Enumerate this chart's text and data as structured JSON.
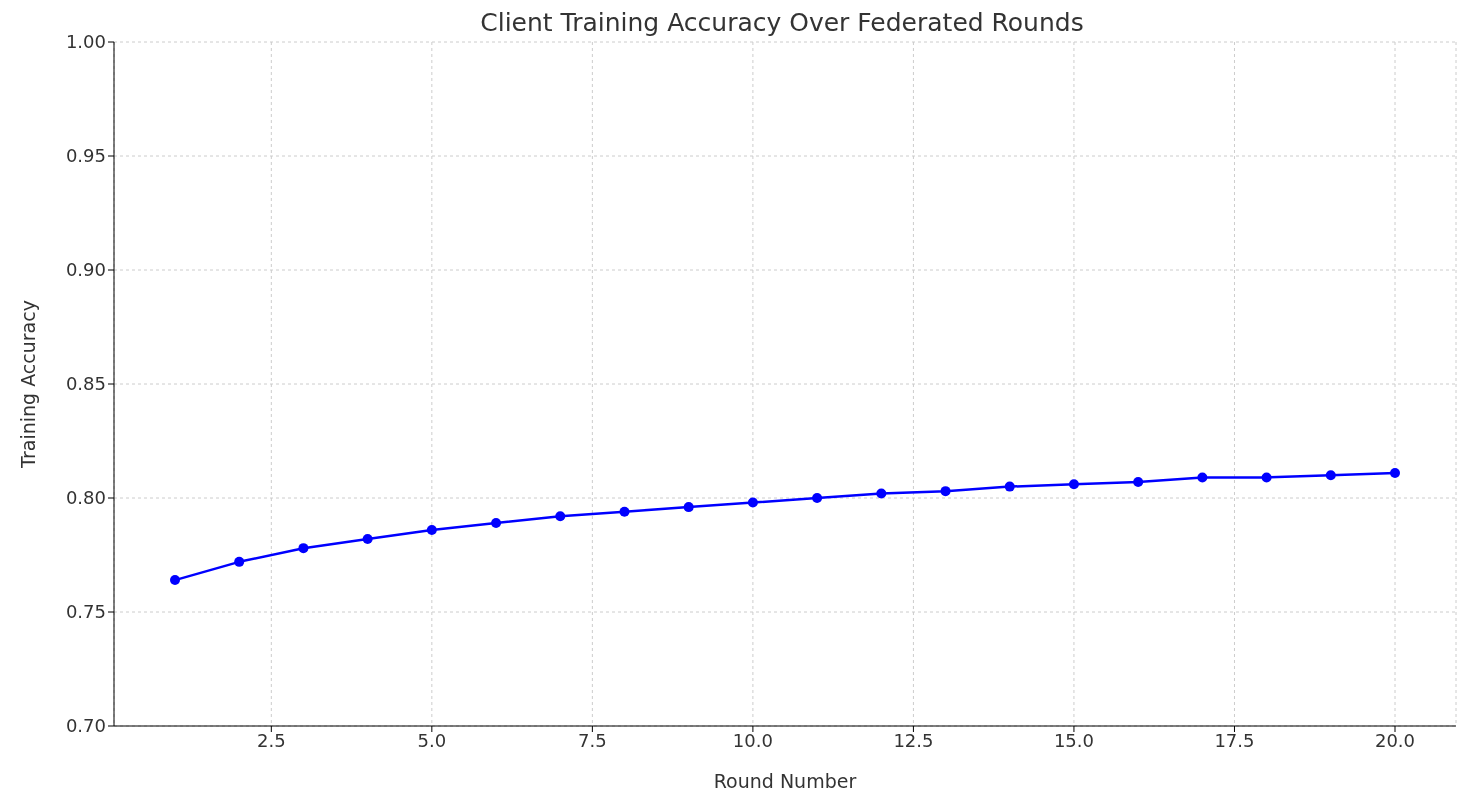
{
  "chart_data": {
    "type": "line",
    "title": "Client Training Accuracy Over Federated Rounds",
    "xlabel": "Round Number",
    "ylabel": "Training Accuracy",
    "x": [
      1,
      2,
      3,
      4,
      5,
      6,
      7,
      8,
      9,
      10,
      11,
      12,
      13,
      14,
      15,
      16,
      17,
      18,
      19,
      20
    ],
    "series": [
      {
        "color": "#0000ff",
        "values": [
          0.764,
          0.772,
          0.778,
          0.782,
          0.786,
          0.789,
          0.792,
          0.794,
          0.796,
          0.798,
          0.8,
          0.802,
          0.803,
          0.805,
          0.806,
          0.807,
          0.809,
          0.809,
          0.81,
          0.811
        ]
      }
    ],
    "xlim": [
      0.05,
      20.95
    ],
    "xticks": [
      2.5,
      {
        "value": 5,
        "label": "5.0"
      },
      7.5,
      {
        "value": 10,
        "label": "10.0"
      },
      12.5,
      {
        "value": 15,
        "label": "15.0"
      },
      17.5,
      {
        "value": 20,
        "label": "20.0"
      }
    ],
    "ylim": [
      0.7,
      1.0
    ],
    "yticks": [
      {
        "value": 0.7,
        "label": "0.70"
      },
      0.75,
      {
        "value": 0.8,
        "label": "0.80"
      },
      0.85,
      {
        "value": 0.9,
        "label": "0.90"
      },
      0.95,
      {
        "value": 1,
        "label": "1.00"
      }
    ],
    "grid": true,
    "marker": "circle",
    "line_style": "solid"
  }
}
